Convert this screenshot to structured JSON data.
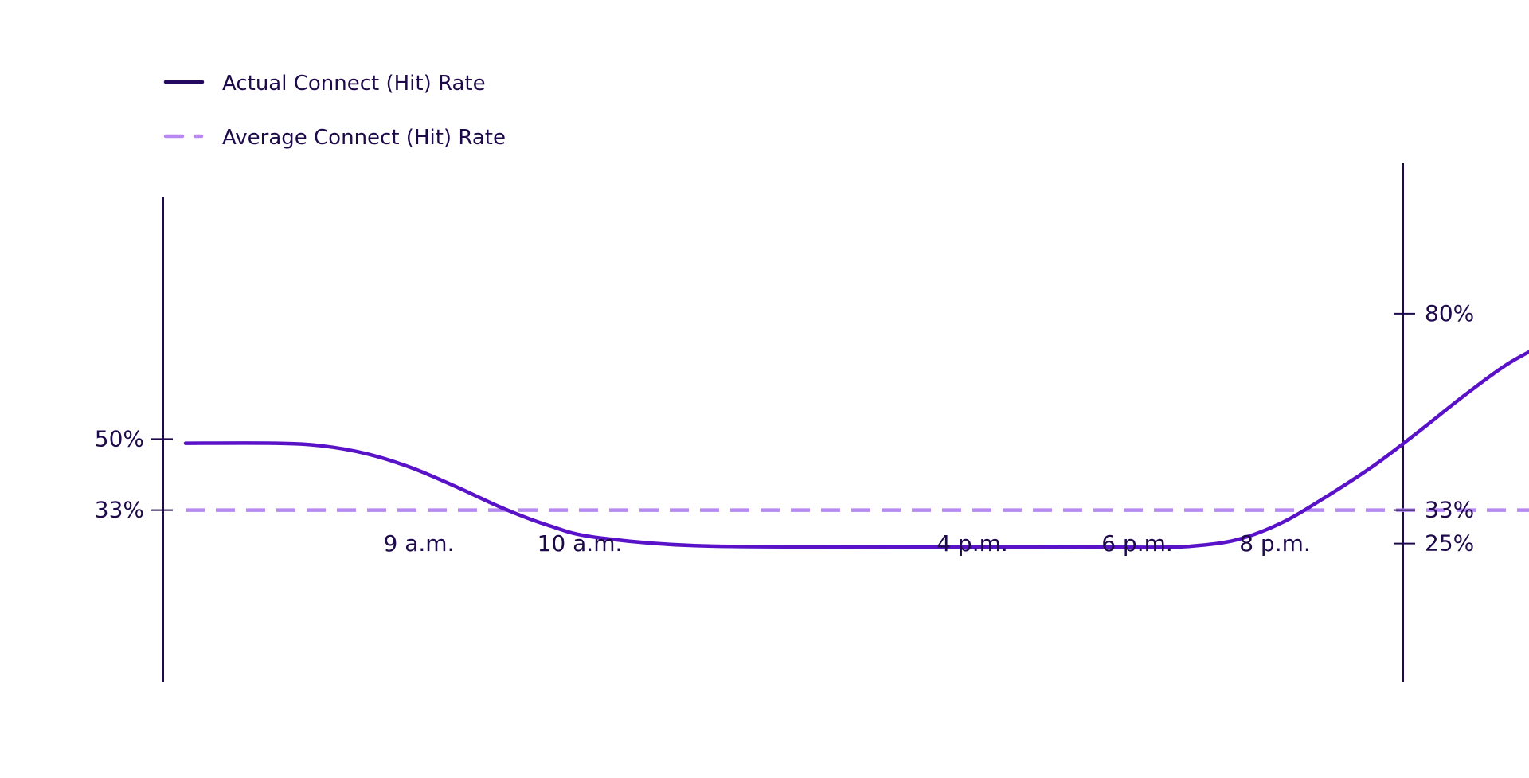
{
  "colors": {
    "axis": "#1e0a4b",
    "text": "#1e0a4b",
    "actual_line": "#5a12c8",
    "average_line": "#b889f2",
    "legend_actual": "#24095e"
  },
  "chart_data": {
    "type": "line",
    "title": "",
    "xlabel": "",
    "ylabel": "",
    "legend": {
      "placement": "top-left",
      "entries": [
        {
          "name": "Actual Connect (Hit) Rate",
          "style": "solid"
        },
        {
          "name": "Average Connect (Hit) Rate",
          "style": "dashed"
        }
      ]
    },
    "ylim": [
      10,
      100
    ],
    "grid": false,
    "y_ticks_left": [
      {
        "value": 50,
        "label": "50%"
      },
      {
        "value": 33,
        "label": "33%"
      }
    ],
    "y_ticks_right": [
      {
        "value": 80,
        "label": "80%"
      },
      {
        "value": 33,
        "label": "33%"
      },
      {
        "value": 25,
        "label": "25%"
      }
    ],
    "x_time_labels": [
      "9 a.m.",
      "10 a.m.",
      "4 p.m.",
      "6 p.m.",
      "8 p.m."
    ],
    "series": [
      {
        "name": "Actual Connect (Hit) Rate",
        "x": [
          7.0,
          7.8,
          8.2,
          8.6,
          9.0,
          9.4,
          9.8,
          10.2,
          10.6,
          11.5,
          13.0,
          14.5,
          15.5,
          15.9,
          16.3,
          16.7,
          17.1,
          17.5,
          17.9,
          18.3,
          18.7,
          19.1,
          19.5,
          20.0,
          20.9
        ],
        "y": [
          49,
          49,
          48.4,
          46.5,
          43.1,
          38.5,
          33.5,
          29.4,
          26.6,
          24.5,
          24.2,
          24.2,
          24.1,
          24.4,
          26.0,
          30.2,
          36.6,
          43.7,
          51.9,
          60.5,
          68.3,
          73.8,
          77.6,
          79.3,
          79.3
        ]
      },
      {
        "name": "Average Connect (Hit) Rate",
        "x": [
          7.0,
          21.0
        ],
        "y": [
          33,
          33
        ]
      }
    ]
  }
}
